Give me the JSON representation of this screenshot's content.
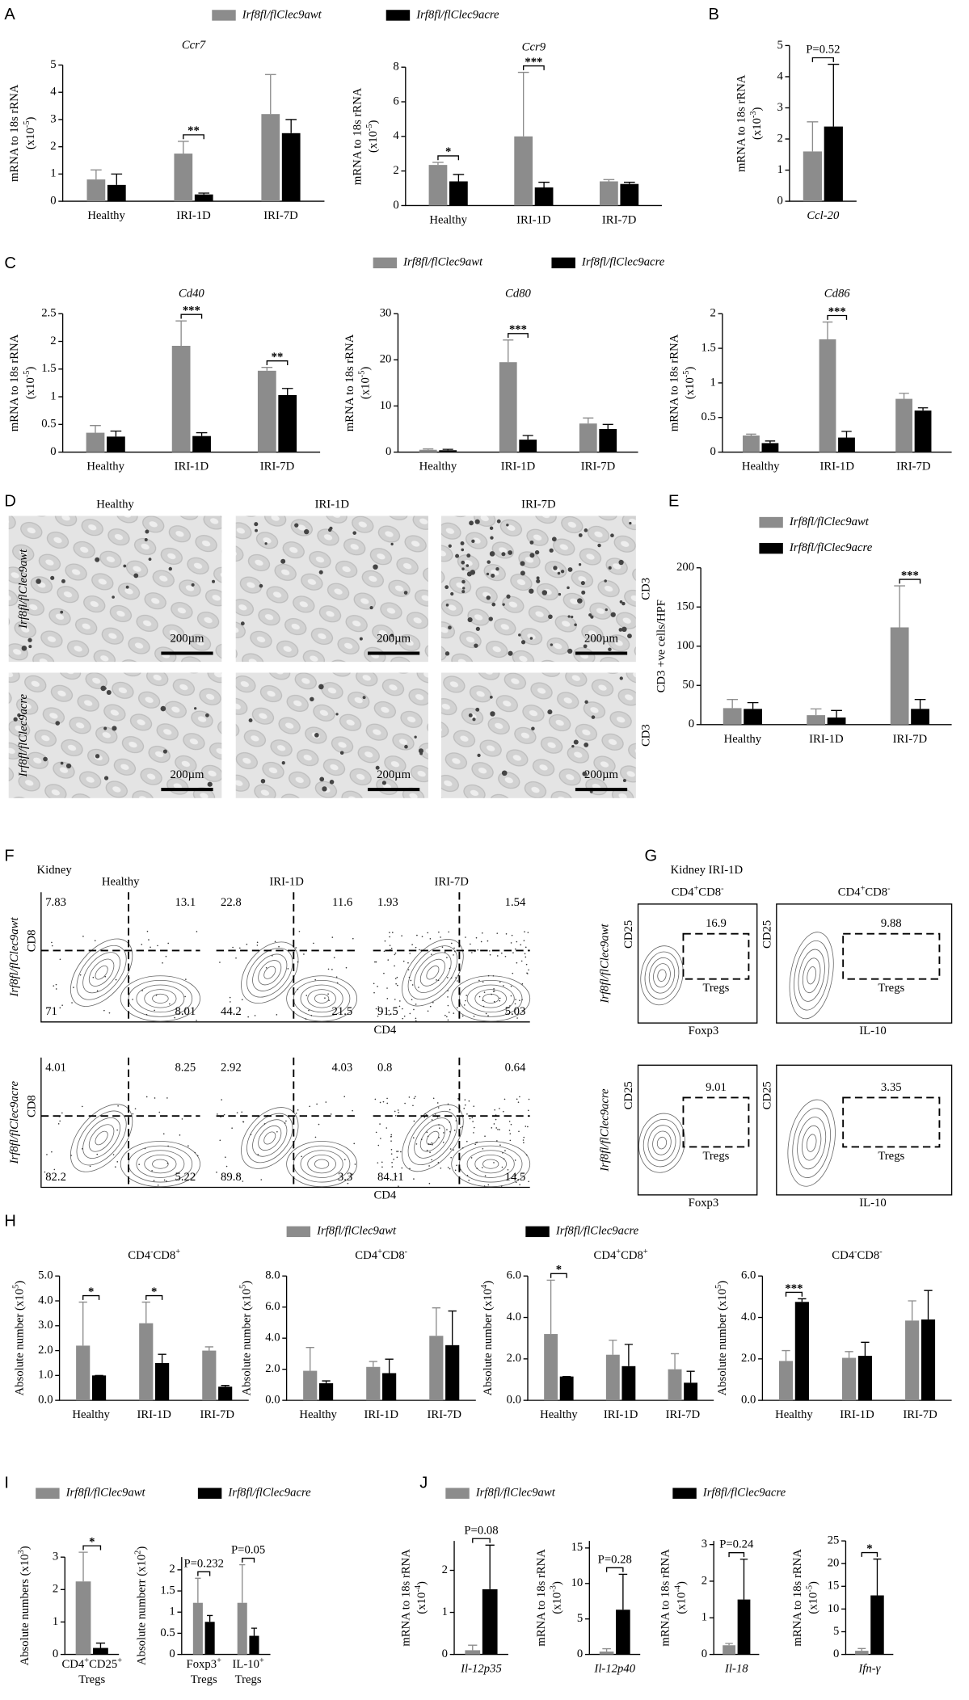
{
  "panel_letters": [
    "A",
    "B",
    "C",
    "D",
    "E",
    "F",
    "G",
    "H",
    "I",
    "J"
  ],
  "legends": [
    [
      {
        "name": "Irf8fl/flClec9awt",
        "color": "#8c8c8c"
      },
      {
        "name": "Irf8fl/flClec9acre",
        "color": "#000000"
      }
    ],
    [
      {
        "name": "Irf8fl/flClec9awt",
        "color": "#8c8c8c"
      },
      {
        "name": "Irf8fl/flClec9acre",
        "color": "#000000"
      }
    ],
    [
      {
        "name": "Irf8fl/flClec9awt",
        "color": "#8c8c8c"
      },
      {
        "name": "Irf8fl/flClec9acre",
        "color": "#000000"
      }
    ],
    [
      {
        "name": "Irf8fl/flClec9awt",
        "color": "#8c8c8c"
      },
      {
        "name": "Irf8fl/flClec9acre",
        "color": "#000000"
      }
    ],
    [
      {
        "name": "Irf8fl/flClec9awt",
        "color": "#8c8c8c"
      },
      {
        "name": "Irf8fl/flClec9acre",
        "color": "#000000"
      }
    ],
    [
      {
        "name": "Irf8fl/flClec9awt",
        "color": "#8c8c8c"
      },
      {
        "name": "Irf8fl/flClec9acre",
        "color": "#000000"
      }
    ]
  ],
  "micrographs": {
    "columns": [
      "Healthy",
      "IRI-1D",
      "IRI-7D"
    ],
    "scale_bar": "200µm",
    "stain": "CD3"
  },
  "flow_f": {
    "tissue": "Kidney",
    "columns": [
      "Healthy",
      "IRI-1D",
      "IRI-7D"
    ],
    "x_axis": "CD4",
    "y_axis": "CD8",
    "quadrants": [
      [
        [
          7.83,
          13.1,
          71,
          8.01
        ],
        [
          22.8,
          11.6,
          44.2,
          21.5
        ],
        [
          1.93,
          1.54,
          91.5,
          5.03
        ]
      ],
      [
        [
          4.01,
          8.25,
          82.2,
          5.22
        ],
        [
          2.92,
          4.03,
          89.8,
          3.3
        ],
        [
          0.8,
          0.64,
          84.11,
          14.5
        ]
      ]
    ]
  },
  "flow_g": {
    "title": "Kidney IRI-1D",
    "columns": [
      [
        "CD4",
        "+",
        "CD8",
        "-"
      ],
      [
        "CD4",
        "+",
        "CD8",
        "-"
      ]
    ],
    "x_axes": [
      "Foxp3",
      "IL-10"
    ],
    "y_axis": "CD25",
    "gate": "Tregs",
    "values": [
      [
        16.9,
        9.88
      ],
      [
        9.01,
        3.35
      ]
    ]
  },
  "chart_data": [
    {
      "type": "bar",
      "title": "Ccr7",
      "title_italic": true,
      "ylabel": [
        "mRNA to 18s rRNA",
        [
          "(x10",
          "-5",
          ")"
        ]
      ],
      "categories": [
        "Healthy",
        "IRI-1D",
        "IRI-7D"
      ],
      "ylim": [
        0,
        5
      ],
      "yticks": [
        0,
        1,
        2,
        3,
        4,
        5
      ],
      "series": [
        {
          "color": "#8c8c8c",
          "values": [
            0.8,
            1.75,
            3.2
          ],
          "errors": [
            0.35,
            0.45,
            1.45
          ]
        },
        {
          "color": "#000000",
          "values": [
            0.6,
            0.25,
            2.5
          ],
          "errors": [
            0.4,
            0.05,
            0.5
          ]
        }
      ],
      "significance": [
        null,
        "**",
        null
      ]
    },
    {
      "type": "bar",
      "title": "Ccr9",
      "title_italic": true,
      "ylabel": [
        "mRNA to 18s rRNA",
        [
          "(x10",
          "-5",
          ")"
        ]
      ],
      "categories": [
        "Healthy",
        "IRI-1D",
        "IRI-7D"
      ],
      "ylim": [
        0,
        8
      ],
      "yticks": [
        0,
        2,
        4,
        6,
        8
      ],
      "series": [
        {
          "color": "#8c8c8c",
          "values": [
            2.35,
            4.0,
            1.4
          ],
          "errors": [
            0.15,
            3.7,
            0.1
          ]
        },
        {
          "color": "#000000",
          "values": [
            1.4,
            1.05,
            1.25
          ],
          "errors": [
            0.4,
            0.3,
            0.1
          ]
        }
      ],
      "significance": [
        "*",
        "***",
        null
      ]
    },
    {
      "type": "bar",
      "ylabel": [
        "mRNA to 18s rRNA",
        [
          "(x10",
          "-3",
          ")"
        ]
      ],
      "category_italic": true,
      "categories": [
        "Ccl-20"
      ],
      "ylim": [
        0,
        5
      ],
      "yticks": [
        0,
        1,
        2,
        3,
        4,
        5
      ],
      "series": [
        {
          "color": "#8c8c8c",
          "values": [
            1.6
          ],
          "errors": [
            0.95
          ]
        },
        {
          "color": "#000000",
          "values": [
            2.4
          ],
          "errors": [
            2.0
          ]
        }
      ],
      "significance": [
        "P=0.52"
      ]
    },
    {
      "type": "bar",
      "title": "Cd40",
      "title_italic": true,
      "ylabel": [
        "mRNA to 18s rRNA",
        [
          "(x10",
          "-5",
          ")"
        ]
      ],
      "categories": [
        "Healthy",
        "IRI-1D",
        "IRI-7D"
      ],
      "ylim": [
        0,
        2.5
      ],
      "yticks": [
        0,
        0.5,
        1,
        1.5,
        2,
        2.5
      ],
      "series": [
        {
          "color": "#8c8c8c",
          "values": [
            0.35,
            1.92,
            1.47
          ],
          "errors": [
            0.13,
            0.45,
            0.06
          ]
        },
        {
          "color": "#000000",
          "values": [
            0.28,
            0.29,
            1.03
          ],
          "errors": [
            0.1,
            0.06,
            0.12
          ]
        }
      ],
      "significance": [
        null,
        "***",
        "**"
      ]
    },
    {
      "type": "bar",
      "title": "Cd80",
      "title_italic": true,
      "ylabel": [
        "mRNA to 18s rRNA",
        [
          "(x10",
          "-5",
          ")"
        ]
      ],
      "categories": [
        "Healthy",
        "IRI-1D",
        "IRI-7D"
      ],
      "ylim": [
        0,
        30
      ],
      "yticks": [
        0,
        10,
        20,
        30
      ],
      "series": [
        {
          "color": "#8c8c8c",
          "values": [
            0.5,
            19.5,
            6.2
          ],
          "errors": [
            0.2,
            4.8,
            1.2
          ]
        },
        {
          "color": "#000000",
          "values": [
            0.4,
            2.7,
            5.0
          ],
          "errors": [
            0.2,
            0.9,
            1.0
          ]
        }
      ],
      "significance": [
        null,
        "***",
        null
      ]
    },
    {
      "type": "bar",
      "title": "Cd86",
      "title_italic": true,
      "ylabel": [
        "mRNA to 18s rRNA",
        [
          "(x10",
          "-5",
          ")"
        ]
      ],
      "categories": [
        "Healthy",
        "IRI-1D",
        "IRI-7D"
      ],
      "ylim": [
        0,
        2
      ],
      "yticks": [
        0,
        0.5,
        1,
        1.5,
        2
      ],
      "series": [
        {
          "color": "#8c8c8c",
          "values": [
            0.24,
            1.63,
            0.77
          ],
          "errors": [
            0.02,
            0.25,
            0.08
          ]
        },
        {
          "color": "#000000",
          "values": [
            0.13,
            0.21,
            0.6
          ],
          "errors": [
            0.03,
            0.09,
            0.04
          ]
        }
      ],
      "significance": [
        null,
        "***",
        null
      ]
    },
    {
      "type": "bar",
      "ylabel": [
        "CD3 +ve cells/HPF"
      ],
      "categories": [
        "Healthy",
        "IRI-1D",
        "IRI-7D"
      ],
      "ylim": [
        0,
        200
      ],
      "yticks": [
        0,
        50,
        100,
        150,
        200
      ],
      "series": [
        {
          "color": "#8c8c8c",
          "values": [
            21,
            12,
            124
          ],
          "errors": [
            11,
            8,
            53
          ]
        },
        {
          "color": "#000000",
          "values": [
            20,
            9,
            20
          ],
          "errors": [
            8,
            9,
            12
          ]
        }
      ],
      "significance": [
        null,
        null,
        "***"
      ]
    },
    {
      "type": "bar",
      "title": [
        "CD4",
        "-",
        "CD8",
        "+"
      ],
      "ylabel": [
        [
          "Absolute number (x10",
          "5",
          ")"
        ]
      ],
      "categories": [
        "Healthy",
        "IRI-1D",
        "IRI-7D"
      ],
      "ylim": [
        0,
        5
      ],
      "yticks": [
        {
          "value": 0,
          "label": "0.0"
        },
        {
          "value": 1,
          "label": "1.0"
        },
        {
          "value": 2,
          "label": "2.0"
        },
        {
          "value": 3,
          "label": "3.0"
        },
        {
          "value": 4,
          "label": "4.0"
        },
        {
          "value": 5,
          "label": "5.0"
        }
      ],
      "series": [
        {
          "color": "#8c8c8c",
          "values": [
            2.2,
            3.1,
            2.0
          ],
          "errors": [
            1.75,
            0.85,
            0.15
          ]
        },
        {
          "color": "#000000",
          "values": [
            1.0,
            1.5,
            0.55
          ],
          "errors": [
            0,
            0.35,
            0.05
          ]
        }
      ],
      "significance": [
        "*",
        "*",
        null
      ]
    },
    {
      "type": "bar",
      "title": [
        "CD4",
        "+",
        "CD8",
        "-"
      ],
      "ylabel": [
        [
          "Absolute number (x10",
          "5",
          ")"
        ]
      ],
      "categories": [
        "Healthy",
        "IRI-1D",
        "IRI-7D"
      ],
      "ylim": [
        0,
        8
      ],
      "yticks": [
        {
          "value": 0,
          "label": "0.0"
        },
        {
          "value": 2,
          "label": "2.0"
        },
        {
          "value": 4,
          "label": "4.0"
        },
        {
          "value": 6,
          "label": "6.0"
        },
        {
          "value": 8,
          "label": "8.0"
        }
      ],
      "series": [
        {
          "color": "#8c8c8c",
          "values": [
            1.9,
            2.15,
            4.15
          ],
          "errors": [
            1.5,
            0.35,
            1.8
          ]
        },
        {
          "color": "#000000",
          "values": [
            1.1,
            1.75,
            3.55
          ],
          "errors": [
            0.15,
            0.9,
            2.2
          ]
        }
      ],
      "significance": [
        null,
        null,
        null
      ]
    },
    {
      "type": "bar",
      "title": [
        "CD4",
        "+",
        "CD8",
        "+"
      ],
      "ylabel": [
        [
          "Absolute number (x10",
          "4",
          ")"
        ]
      ],
      "categories": [
        "Healthy",
        "IRI-1D",
        "IRI-7D"
      ],
      "ylim": [
        0,
        6
      ],
      "yticks": [
        {
          "value": 0,
          "label": "0.0"
        },
        {
          "value": 2,
          "label": "2.0"
        },
        {
          "value": 4,
          "label": "4.0"
        },
        {
          "value": 6,
          "label": "6.0"
        }
      ],
      "series": [
        {
          "color": "#8c8c8c",
          "values": [
            3.2,
            2.2,
            1.5
          ],
          "errors": [
            2.6,
            0.7,
            0.75
          ]
        },
        {
          "color": "#000000",
          "values": [
            1.15,
            1.65,
            0.85
          ],
          "errors": [
            0,
            1.05,
            0.55
          ]
        }
      ],
      "significance": [
        "*",
        null,
        null
      ]
    },
    {
      "type": "bar",
      "title": [
        "CD4",
        "-",
        "CD8",
        "-"
      ],
      "ylabel": [
        [
          "Absolute number (x10",
          "5",
          ")"
        ]
      ],
      "categories": [
        "Healthy",
        "IRI-1D",
        "IRI-7D"
      ],
      "ylim": [
        0,
        6
      ],
      "yticks": [
        {
          "value": 0,
          "label": "0.0"
        },
        {
          "value": 2,
          "label": "2.0"
        },
        {
          "value": 4,
          "label": "4.0"
        },
        {
          "value": 6,
          "label": "6.0"
        }
      ],
      "series": [
        {
          "color": "#8c8c8c",
          "values": [
            1.9,
            2.05,
            3.85
          ],
          "errors": [
            0.5,
            0.3,
            0.95
          ]
        },
        {
          "color": "#000000",
          "values": [
            4.75,
            2.15,
            3.9
          ],
          "errors": [
            0.15,
            0.65,
            1.4
          ]
        }
      ],
      "significance": [
        "***",
        null,
        null
      ]
    },
    {
      "type": "bar",
      "ylabel": [
        [
          "Absolute numbers (x10",
          "3",
          ")"
        ]
      ],
      "categories": [
        [
          [
            "CD4",
            "+",
            "CD25",
            "+"
          ],
          "Tregs"
        ]
      ],
      "ylim": [
        0,
        3
      ],
      "yticks": [
        0,
        1,
        2,
        3
      ],
      "series": [
        {
          "color": "#8c8c8c",
          "values": [
            2.25
          ],
          "errors": [
            0.9
          ]
        },
        {
          "color": "#000000",
          "values": [
            0.2
          ],
          "errors": [
            0.15
          ]
        }
      ],
      "significance": [
        "*"
      ]
    },
    {
      "type": "bar",
      "ylabel": [
        [
          "Absolute numberr (x10",
          "2",
          ")"
        ]
      ],
      "categories": [
        [
          [
            "Foxp3",
            "+"
          ],
          "Tregs"
        ],
        [
          [
            "IL-10",
            "+"
          ],
          "Tregs"
        ]
      ],
      "ylim": [
        0,
        2.3
      ],
      "yticks": [
        0,
        0.5,
        1,
        1.5,
        2
      ],
      "series": [
        {
          "color": "#8c8c8c",
          "values": [
            1.22,
            1.22
          ],
          "errors": [
            0.58,
            0.9
          ]
        },
        {
          "color": "#000000",
          "values": [
            0.77,
            0.44
          ],
          "errors": [
            0.15,
            0.18
          ]
        }
      ],
      "significance": [
        "P=0.232",
        "P=0.05"
      ]
    },
    {
      "type": "bar",
      "ylabel": [
        "mRNA to 18s rRNA",
        [
          "(x10",
          "-4",
          ")"
        ]
      ],
      "category_italic": true,
      "categories": [
        "Il-12p35"
      ],
      "ylim": [
        0,
        2.7
      ],
      "yticks": [
        0,
        1,
        2
      ],
      "series": [
        {
          "color": "#8c8c8c",
          "values": [
            0.1
          ],
          "errors": [
            0.12
          ]
        },
        {
          "color": "#000000",
          "values": [
            1.55
          ],
          "errors": [
            1.05
          ]
        }
      ],
      "significance": [
        "P=0.08"
      ]
    },
    {
      "type": "bar",
      "ylabel": [
        "mRNA to 18s rRNA",
        [
          "(x10",
          "-3",
          ")"
        ]
      ],
      "category_italic": true,
      "categories": [
        "Il-12p40"
      ],
      "ylim": [
        0,
        16
      ],
      "yticks": [
        0,
        5,
        10,
        15
      ],
      "series": [
        {
          "color": "#8c8c8c",
          "values": [
            0.4
          ],
          "errors": [
            0.4
          ]
        },
        {
          "color": "#000000",
          "values": [
            6.3
          ],
          "errors": [
            5.0
          ]
        }
      ],
      "significance": [
        "P=0.28"
      ]
    },
    {
      "type": "bar",
      "ylabel": [
        "mRNA to 18s rRNA",
        [
          "(x10",
          "-4",
          ")"
        ]
      ],
      "category_italic": true,
      "categories": [
        "Il-18"
      ],
      "ylim": [
        0,
        3.1
      ],
      "yticks": [
        0,
        1,
        2,
        3
      ],
      "series": [
        {
          "color": "#8c8c8c",
          "values": [
            0.25
          ],
          "errors": [
            0.05
          ]
        },
        {
          "color": "#000000",
          "values": [
            1.5
          ],
          "errors": [
            1.1
          ]
        }
      ],
      "significance": [
        "P=0.24"
      ]
    },
    {
      "type": "bar",
      "ylabel": [
        "mRNA to 18s rRNA",
        [
          "(x10",
          "-5",
          ")"
        ]
      ],
      "category_italic": true,
      "categories": [
        "Ifn-γ"
      ],
      "ylim": [
        0,
        25
      ],
      "yticks": [
        0,
        5,
        10,
        15,
        20,
        25
      ],
      "series": [
        {
          "color": "#8c8c8c",
          "values": [
            0.8
          ],
          "errors": [
            0.5
          ]
        },
        {
          "color": "#000000",
          "values": [
            13
          ],
          "errors": [
            8
          ]
        }
      ],
      "significance": [
        "*"
      ]
    }
  ]
}
